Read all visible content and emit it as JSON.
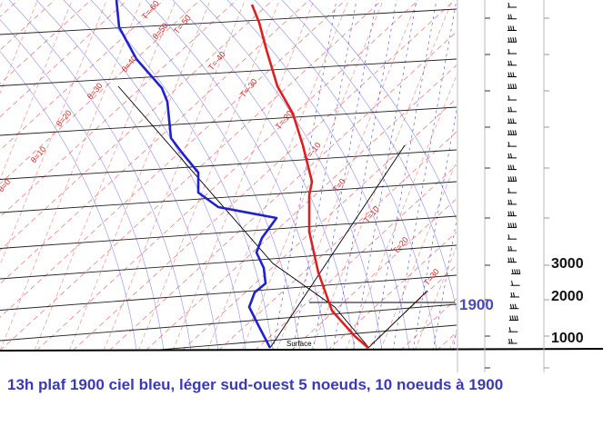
{
  "chart_data": {
    "type": "line",
    "title": "",
    "xlabel": "",
    "ylabel": "",
    "surface_label": "Surface",
    "isotherm_labels": [
      "T=-60",
      "T=-50",
      "T=-40",
      "T=-30",
      "T=-20",
      "T=-10",
      "T=0",
      "T=10",
      "T=20",
      "T=30"
    ],
    "theta_labels": [
      "θ=50",
      "θ=40",
      "θ=30",
      "θ=20",
      "θ=10",
      "θ=0"
    ],
    "series": [
      {
        "role": "temperature",
        "color": "#dd1f1f",
        "x": [
          0.27,
          0.28,
          0.31,
          0.33,
          0.34,
          0.345,
          0.34,
          0.335,
          0.34,
          0.35,
          0.36,
          0.37,
          0.39,
          0.4
        ],
        "y": [
          0.0,
          0.04,
          0.1,
          0.18,
          0.26,
          0.34,
          0.42,
          0.5,
          0.58,
          0.64,
          0.72,
          0.78,
          0.86,
          0.92
        ]
      },
      {
        "role": "dewpoint",
        "color": "#2020d0",
        "x": [
          0.13,
          0.15,
          0.17,
          0.19,
          0.19,
          0.2,
          0.22,
          0.22,
          0.24,
          0.3,
          0.285,
          0.29,
          0.27,
          0.29,
          0.28,
          0.27,
          0.3
        ],
        "y": [
          0.0,
          0.08,
          0.16,
          0.25,
          0.33,
          0.4,
          0.47,
          0.52,
          0.56,
          0.6,
          0.64,
          0.69,
          0.73,
          0.78,
          0.82,
          0.88,
          0.92
        ]
      }
    ],
    "altitude_ticks": [
      "3000",
      "2000",
      "1000"
    ],
    "plafond_label": "1900",
    "wind_barbs": 30
  },
  "caption": "13h plaf 1900 ciel bleu, léger sud-ouest 5 noeuds, 10 noeuds à 1900",
  "colors": {
    "temperature": "#dd1f1f",
    "dewpoint": "#2020d0",
    "isotherm": "#e88080",
    "dry_adiabat": "#f0a0a0",
    "moist_adiabat": "#6a6ae0",
    "grid": "#000000",
    "caption": "#3a3ab8"
  }
}
